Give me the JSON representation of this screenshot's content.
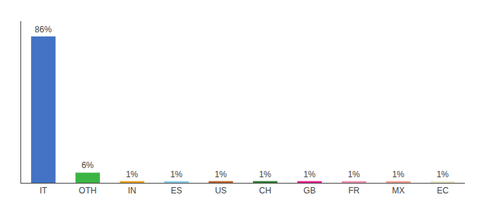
{
  "chart_data": {
    "type": "bar",
    "categories": [
      "IT",
      "OTH",
      "IN",
      "ES",
      "US",
      "CH",
      "GB",
      "FR",
      "MX",
      "EC"
    ],
    "values": [
      86,
      6,
      1,
      1,
      1,
      1,
      1,
      1,
      1,
      1
    ],
    "value_labels": [
      "86%",
      "6%",
      "1%",
      "1%",
      "1%",
      "1%",
      "1%",
      "1%",
      "1%",
      "1%"
    ],
    "colors": [
      "#4472c4",
      "#3cb444",
      "#e8a020",
      "#87ceeb",
      "#c0622b",
      "#2e7d32",
      "#e91e8c",
      "#f48fb1",
      "#f4a090",
      "#e8e8c8"
    ],
    "ylim": [
      0,
      95
    ],
    "grid": false,
    "data_labels": true,
    "tick_labels": "x"
  }
}
